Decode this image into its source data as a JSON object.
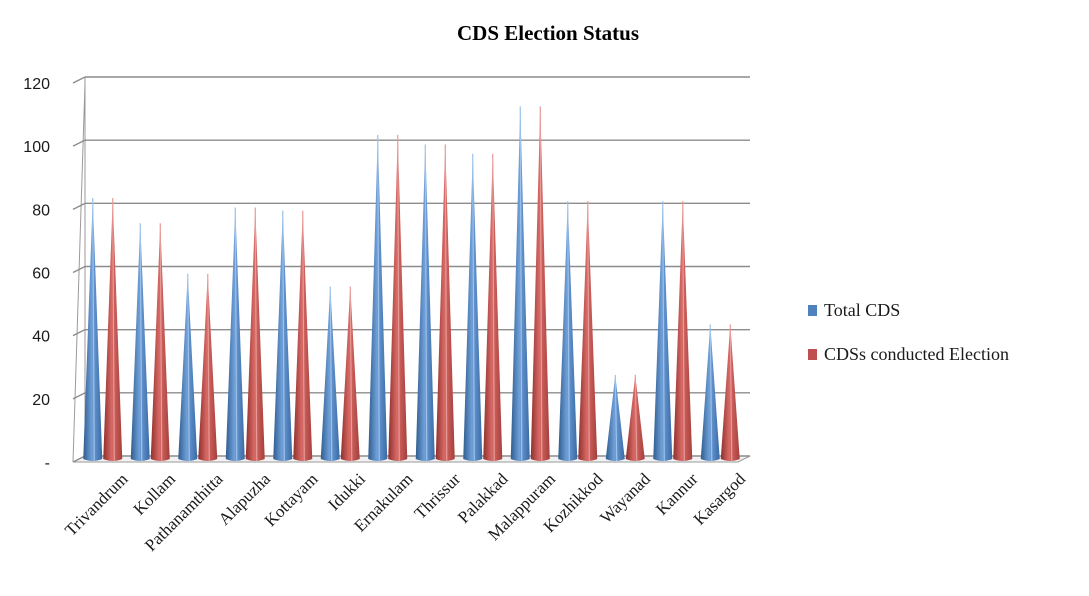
{
  "chart_data": {
    "type": "bar",
    "title": "CDS Election Status",
    "categories": [
      "Trivandrum",
      "Kollam",
      "Pathanamthitta",
      "Alapuzha",
      "Kottayam",
      "Idukki",
      "Ernakulam",
      "Thrissur",
      "Palakkad",
      "Malappuram",
      "Kozhikkod",
      "Wayanad",
      "Kannur",
      "Kasargod"
    ],
    "series": [
      {
        "name": "Total CDS",
        "color": "#4f81bd",
        "values": [
          82,
          74,
          58,
          79,
          78,
          54,
          102,
          99,
          96,
          111,
          81,
          26,
          81,
          42
        ]
      },
      {
        "name": "CDSs conducted Election",
        "color": "#c0504d",
        "values": [
          82,
          74,
          58,
          79,
          78,
          54,
          102,
          99,
          96,
          111,
          81,
          26,
          81,
          42
        ]
      }
    ],
    "ylim": [
      0,
      120
    ],
    "yticks": [
      0,
      20,
      40,
      60,
      80,
      100,
      120
    ],
    "ytick_labels": [
      "-",
      "20",
      "40",
      "60",
      "80",
      "100",
      "120"
    ],
    "xlabel": "",
    "ylabel": "",
    "grid": true,
    "legend_position": "right",
    "bar_shape": "3d-cone"
  }
}
